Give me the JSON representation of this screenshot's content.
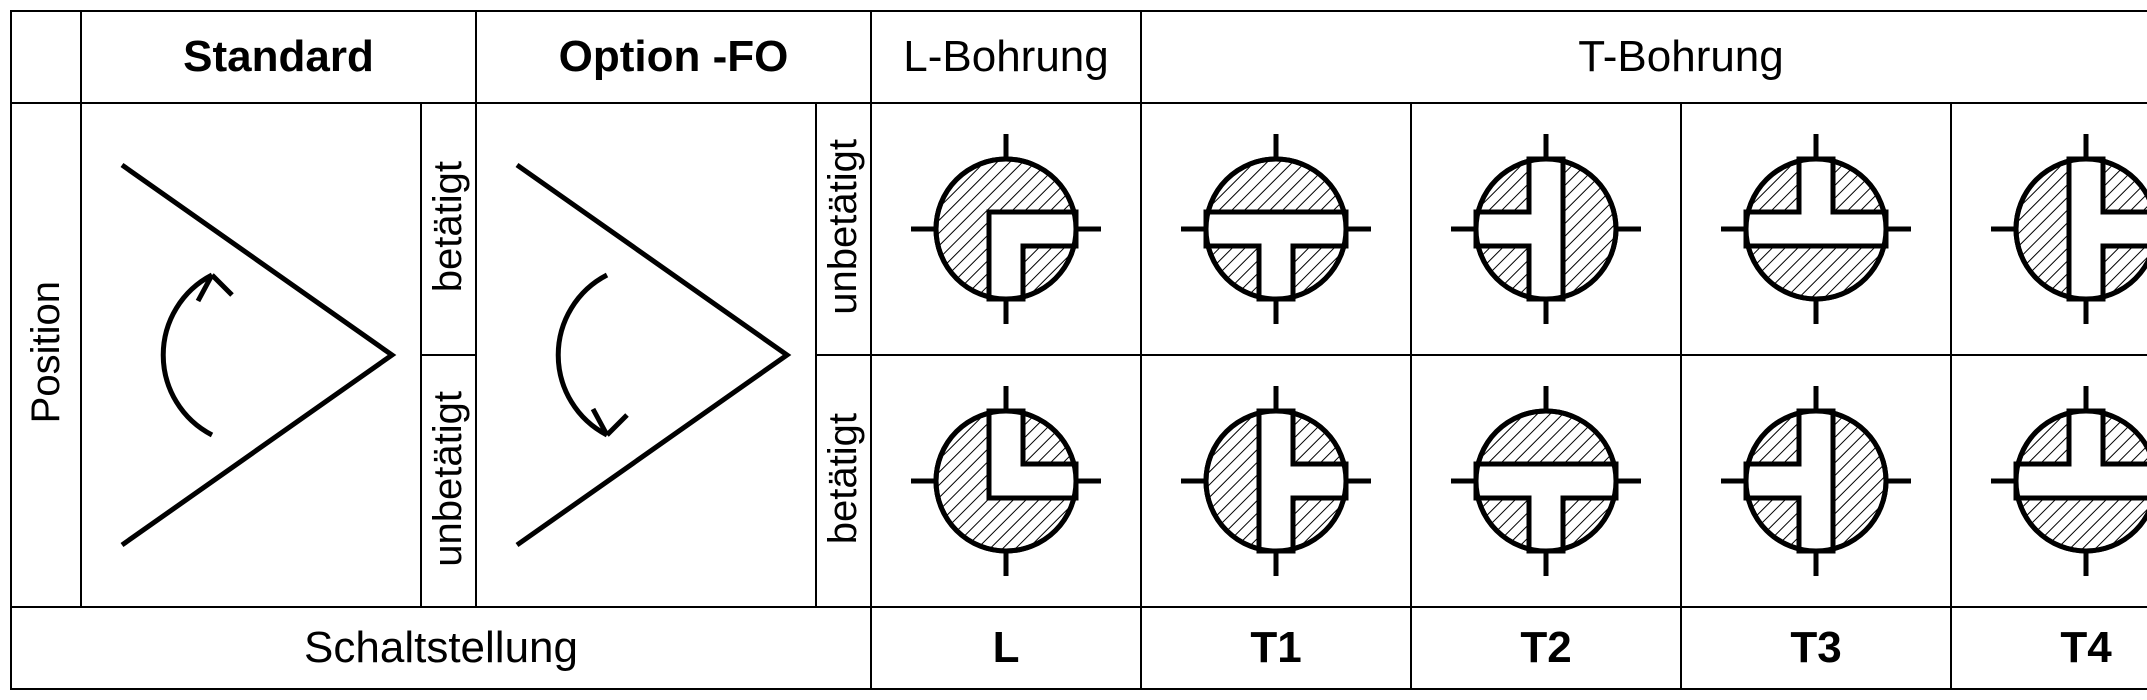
{
  "headers": {
    "standard": "Standard",
    "option_fo": "Option -FO",
    "l_bohrung": "L-Bohrung",
    "t_bohrung": "T-Bohrung"
  },
  "row_labels": {
    "position": "Position",
    "betaetigt": "betätigt",
    "unbetaetigt": "unbetätigt"
  },
  "footer": {
    "schaltstellung": "Schaltstellung",
    "L": "L",
    "T1": "T1",
    "T2": "T2",
    "T3": "T3",
    "T4": "T4"
  },
  "style": {
    "stroke": "#000000",
    "stroke_width": 5,
    "hatch_spacing": 9,
    "hatch_width": 2,
    "circle_r": 70,
    "bore_w": 34,
    "stub_len": 25,
    "font_header": 44,
    "font_body": 40,
    "background": "#ffffff"
  },
  "symbols": {
    "row1": {
      "L": {
        "bore": "L",
        "rot": 0
      },
      "T1": {
        "bore": "T",
        "rot": 0
      },
      "T2": {
        "bore": "T",
        "rot": 90
      },
      "T3": {
        "bore": "T",
        "rot": 180
      },
      "T4": {
        "bore": "T",
        "rot": 270
      }
    },
    "row2": {
      "L": {
        "bore": "L",
        "rot": 270
      },
      "T1": {
        "bore": "T",
        "rot": 270
      },
      "T2": {
        "bore": "T",
        "rot": 0
      },
      "T3": {
        "bore": "T",
        "rot": 90
      },
      "T4": {
        "bore": "T",
        "rot": 180
      }
    }
  }
}
